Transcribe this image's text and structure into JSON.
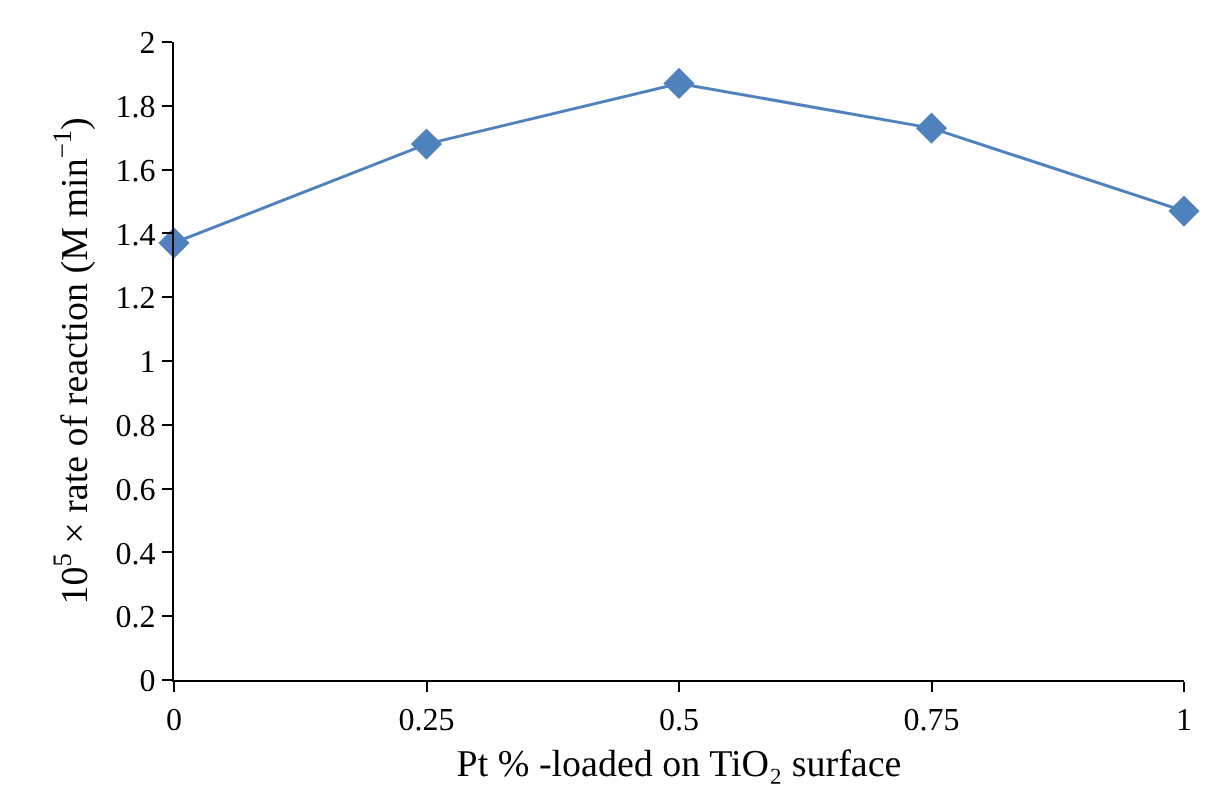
{
  "chart_data": {
    "type": "line",
    "xlabel": "Pt % -loaded on TiO₂ surface",
    "ylabel": "10$^{5}$ × rate of reaction (M min$^{−1}$)",
    "x": [
      0,
      0.25,
      0.5,
      0.75,
      1
    ],
    "series": [
      {
        "color": "#4f81bd",
        "values": [
          1.37,
          1.68,
          1.87,
          1.73,
          1.47
        ]
      }
    ],
    "xlim": [
      0,
      1
    ],
    "xticks": [
      0,
      0.25,
      0.5,
      0.75,
      1
    ],
    "ylim": [
      0,
      2
    ],
    "yticks": [
      0,
      0.2,
      0.4,
      0.6,
      0.8,
      1,
      1.2,
      1.4,
      1.6,
      1.8,
      2
    ],
    "legend": false,
    "marker": "diamond",
    "line_style": "solid"
  }
}
